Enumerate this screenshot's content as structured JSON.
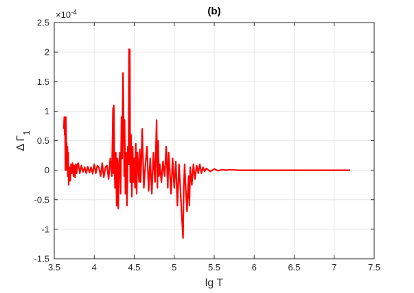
{
  "chart_data": {
    "type": "line",
    "title": "(b)",
    "xlabel": "lg T",
    "ylabel": "Δ Γ",
    "ylabel_subscript": "1",
    "exponent_label": "×10",
    "exponent_power": "-4",
    "xlim": [
      3.5,
      7.5
    ],
    "ylim": [
      -1.5,
      2.5
    ],
    "x_ticks": [
      3.5,
      4,
      4.5,
      5,
      5.5,
      6,
      6.5,
      7,
      7.5
    ],
    "x_tick_labels": [
      "3.5",
      "4",
      "4.5",
      "5",
      "5.5",
      "6",
      "6.5",
      "7",
      "7.5"
    ],
    "y_ticks": [
      -1.5,
      -1,
      -0.5,
      0,
      0.5,
      1,
      1.5,
      2,
      2.5
    ],
    "y_tick_labels": [
      "-1.5",
      "-1",
      "-0.5",
      "0",
      "0.5",
      "1",
      "1.5",
      "2",
      "2.5"
    ],
    "grid": true,
    "colors": {
      "series": "#ff0000",
      "grid": "#e6e6e6",
      "axis": "#262626"
    },
    "series": [
      {
        "color": "#ff0000",
        "x": [
          3.62,
          3.625,
          3.63,
          3.635,
          3.64,
          3.645,
          3.65,
          3.655,
          3.66,
          3.665,
          3.67,
          3.675,
          3.68,
          3.69,
          3.7,
          3.71,
          3.72,
          3.73,
          3.74,
          3.75,
          3.76,
          3.77,
          3.78,
          3.79,
          3.8,
          3.82,
          3.84,
          3.86,
          3.88,
          3.9,
          3.92,
          3.94,
          3.96,
          3.98,
          4.0,
          4.02,
          4.04,
          4.06,
          4.08,
          4.1,
          4.12,
          4.14,
          4.16,
          4.18,
          4.2,
          4.22,
          4.235,
          4.24,
          4.245,
          4.25,
          4.26,
          4.27,
          4.28,
          4.29,
          4.3,
          4.31,
          4.32,
          4.33,
          4.34,
          4.35,
          4.36,
          4.37,
          4.375,
          4.38,
          4.39,
          4.4,
          4.41,
          4.42,
          4.43,
          4.435,
          4.44,
          4.445,
          4.45,
          4.46,
          4.47,
          4.48,
          4.49,
          4.5,
          4.51,
          4.52,
          4.53,
          4.54,
          4.55,
          4.56,
          4.57,
          4.58,
          4.59,
          4.6,
          4.62,
          4.64,
          4.66,
          4.68,
          4.7,
          4.72,
          4.74,
          4.76,
          4.78,
          4.79,
          4.8,
          4.81,
          4.82,
          4.84,
          4.86,
          4.88,
          4.9,
          4.92,
          4.93,
          4.94,
          4.96,
          4.98,
          5.0,
          5.02,
          5.04,
          5.06,
          5.08,
          5.1,
          5.11,
          5.12,
          5.13,
          5.14,
          5.16,
          5.18,
          5.19,
          5.2,
          5.22,
          5.24,
          5.26,
          5.28,
          5.3,
          5.32,
          5.34,
          5.36,
          5.38,
          5.4,
          5.45,
          5.5,
          5.55,
          5.6,
          5.65,
          5.7,
          5.8,
          5.9,
          6.0,
          6.2,
          6.4,
          6.6,
          6.8,
          7.0,
          7.2
        ],
        "values": [
          0.7,
          0.9,
          0.6,
          0.85,
          0.0,
          0.9,
          0.5,
          0.45,
          0.0,
          0.4,
          -0.1,
          0.3,
          -0.25,
          0.05,
          -0.18,
          0.1,
          -0.05,
          0.12,
          -0.1,
          0.08,
          -0.12,
          0.1,
          -0.05,
          0.1,
          0.12,
          -0.05,
          0.08,
          -0.03,
          0.05,
          -0.05,
          0.06,
          -0.04,
          0.05,
          -0.06,
          0.1,
          -0.05,
          0.08,
          0.04,
          -0.1,
          0.12,
          -0.12,
          0.05,
          0.08,
          -0.15,
          0.2,
          -0.1,
          1.05,
          -0.05,
          1.1,
          0.4,
          -0.3,
          0.3,
          -0.6,
          0.2,
          -0.65,
          0.1,
          0.3,
          -0.4,
          0.9,
          0.2,
          1.65,
          0.6,
          -0.1,
          0.85,
          -0.4,
          0.3,
          -0.6,
          0.4,
          0.1,
          2.05,
          0.1,
          2.05,
          -0.2,
          0.6,
          -0.45,
          0.4,
          -0.2,
          0.2,
          -0.3,
          0.45,
          -0.4,
          0.3,
          0.1,
          -0.2,
          0.35,
          -0.2,
          0.2,
          0.7,
          -0.3,
          0.1,
          0.4,
          -0.35,
          0.2,
          -0.4,
          0.3,
          -0.2,
          0.85,
          -0.3,
          0.5,
          -0.1,
          0.1,
          -0.2,
          0.15,
          -0.1,
          0.4,
          -0.3,
          0.3,
          0.1,
          -0.4,
          0.2,
          -0.3,
          0.15,
          -0.6,
          0.1,
          -0.4,
          -0.9,
          -1.15,
          -0.3,
          0.1,
          -0.2,
          -0.7,
          -0.1,
          -0.6,
          0.05,
          -0.25,
          0.1,
          -0.15,
          0.08,
          -0.05,
          0.1,
          -0.05,
          0.05,
          -0.02,
          0.03,
          -0.02,
          0.02,
          -0.01,
          0.01,
          0.0,
          0.01,
          0.0,
          0.0,
          0.0,
          0.0,
          0.0,
          0.0,
          0.0,
          0.0,
          0.0
        ]
      }
    ]
  }
}
